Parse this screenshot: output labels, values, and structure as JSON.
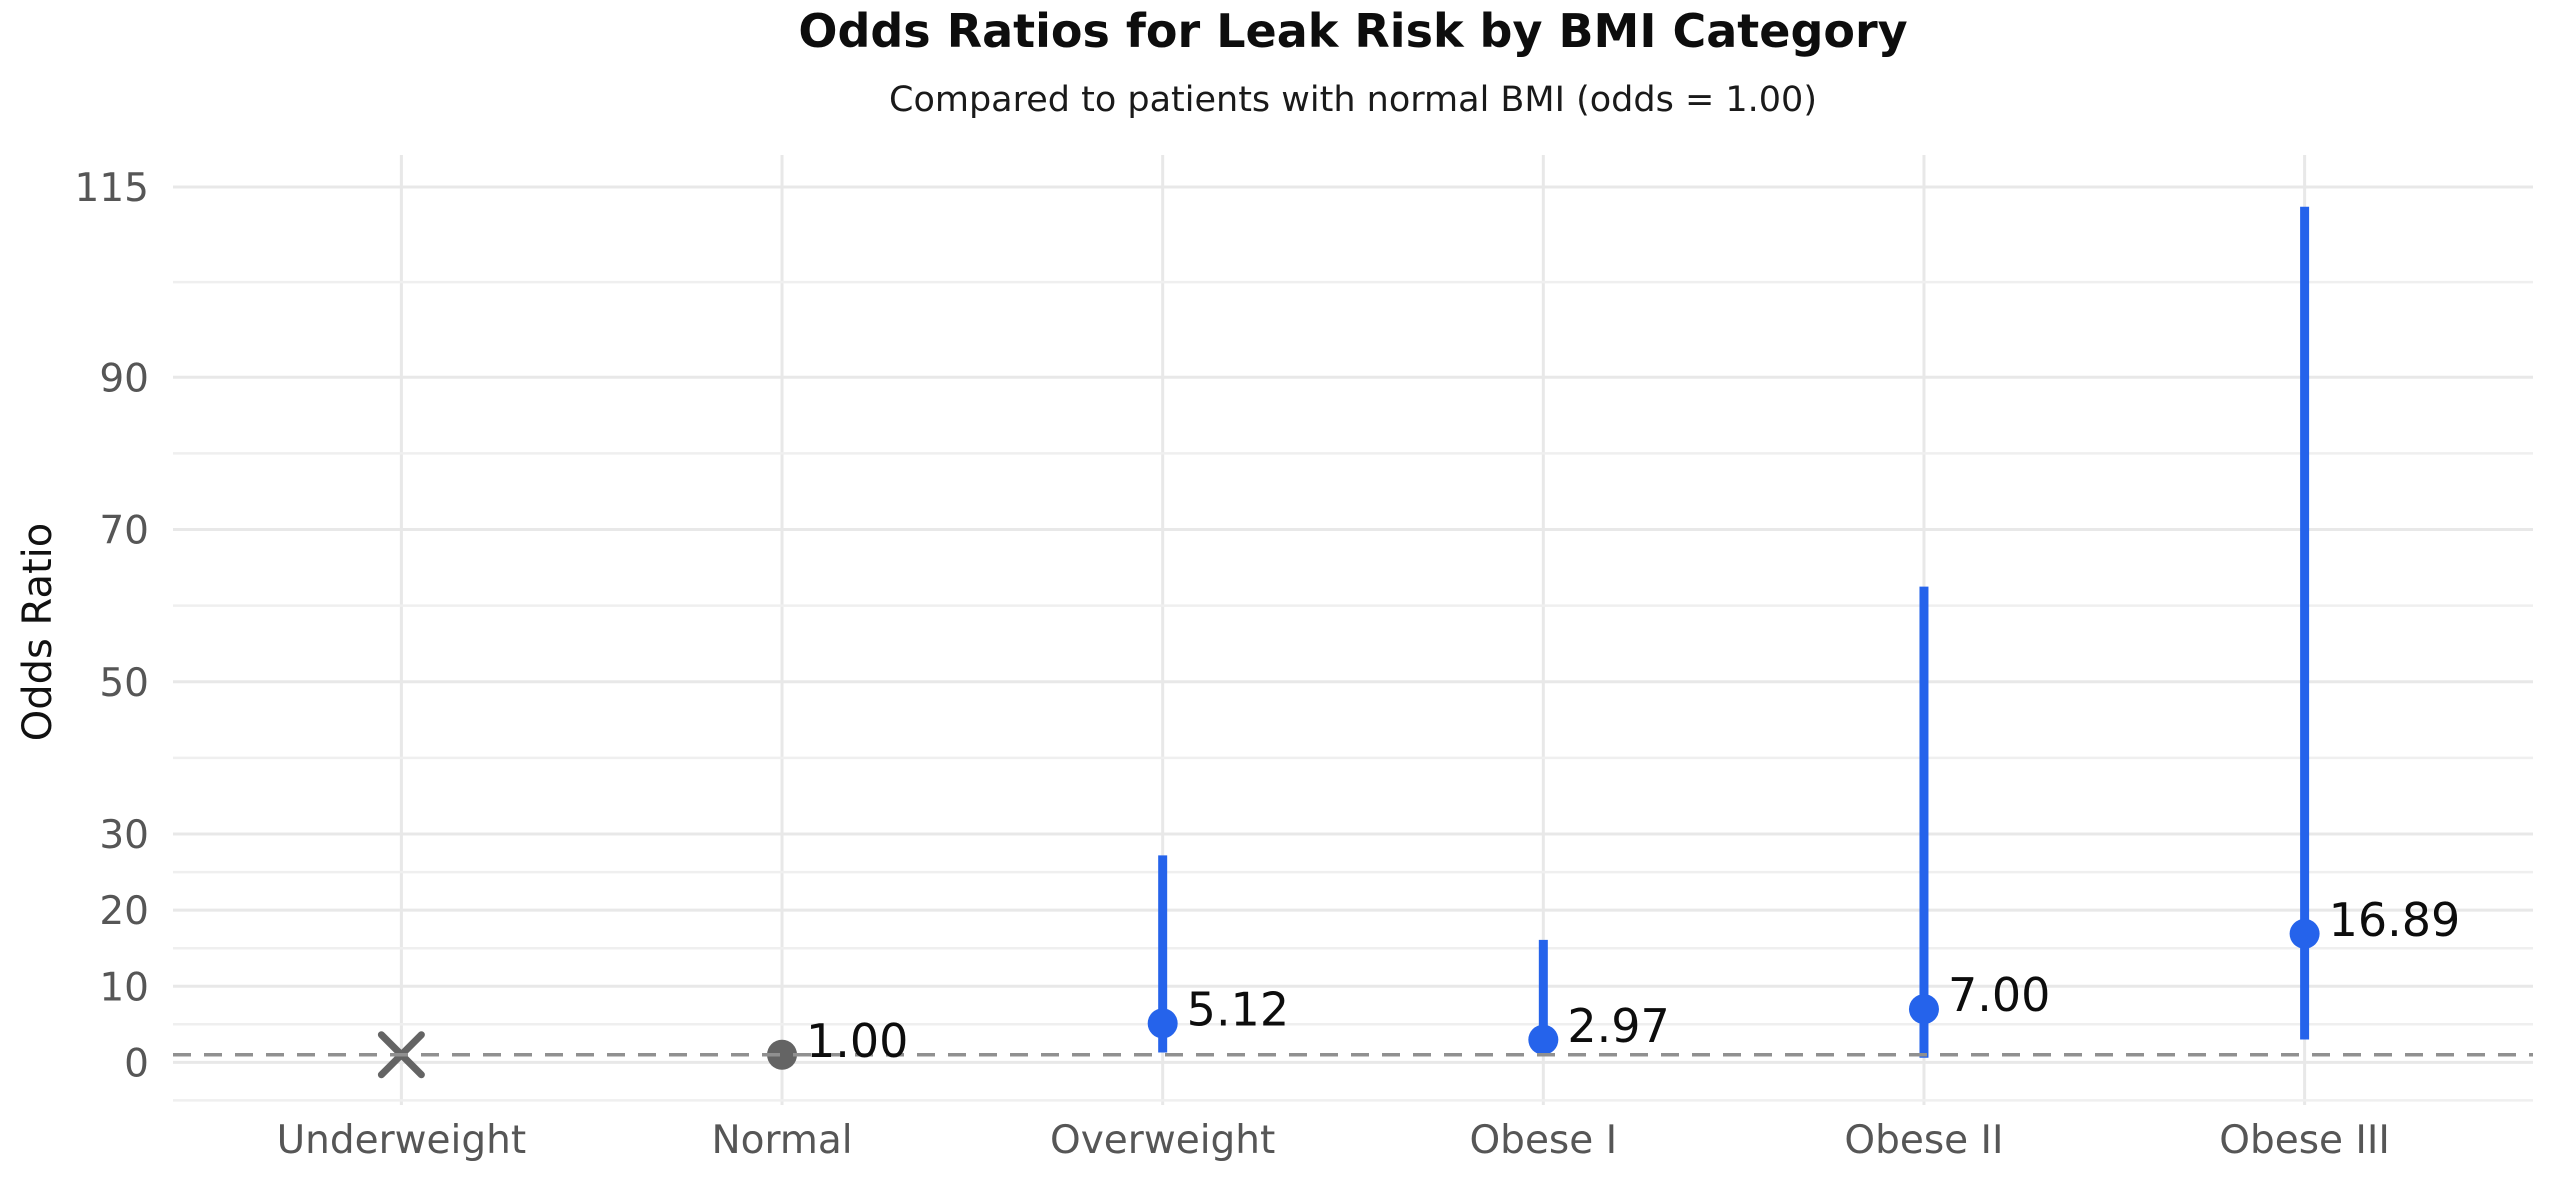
{
  "chart_data": {
    "type": "scatter",
    "title": "Odds Ratios for Leak Risk by BMI Category",
    "subtitle": "Compared to patients with normal BMI (odds = 1.00)",
    "xlabel": "",
    "ylabel": "Odds Ratio",
    "categories": [
      "Underweight",
      "Normal",
      "Overweight",
      "Obese I",
      "Obese II",
      "Obese III"
    ],
    "points": [
      {
        "category": "Underweight",
        "odds_ratio": 1.0,
        "label": "",
        "marker": "x",
        "color_key": "reference",
        "ci_low": null,
        "ci_high": null
      },
      {
        "category": "Normal",
        "odds_ratio": 1.0,
        "label": "1.00",
        "marker": "circle",
        "color_key": "reference",
        "ci_low": null,
        "ci_high": null
      },
      {
        "category": "Overweight",
        "odds_ratio": 5.12,
        "label": "5.12",
        "marker": "circle",
        "color_key": "accent",
        "ci_low": 1.3,
        "ci_high": 27.2
      },
      {
        "category": "Obese I",
        "odds_ratio": 2.97,
        "label": "2.97",
        "marker": "circle",
        "color_key": "accent",
        "ci_low": 0.9,
        "ci_high": 16.1
      },
      {
        "category": "Obese II",
        "odds_ratio": 7.0,
        "label": "7.00",
        "marker": "circle",
        "color_key": "accent",
        "ci_low": 0.6,
        "ci_high": 62.5
      },
      {
        "category": "Obese III",
        "odds_ratio": 16.89,
        "label": "16.89",
        "marker": "circle",
        "color_key": "accent",
        "ci_low": 3.0,
        "ci_high": 112.4
      }
    ],
    "reference_line": {
      "value": 1.0,
      "style": "dashed"
    },
    "y_ticks": [
      0,
      10,
      20,
      30,
      50,
      70,
      90,
      115
    ],
    "y_minor_gridlines": [
      -5,
      5,
      15,
      25,
      40,
      60,
      80,
      102.5
    ],
    "ylim": [
      -5.6,
      119.2
    ],
    "grid": true,
    "legend": false,
    "colors": {
      "accent": "#2563eb",
      "reference_marker": "#646464",
      "reference_line": "#909090",
      "grid_major": "#e8e8e8",
      "grid_minor": "#efefef",
      "tick_label": "#565656",
      "value_label": "#0d0d0d"
    }
  }
}
